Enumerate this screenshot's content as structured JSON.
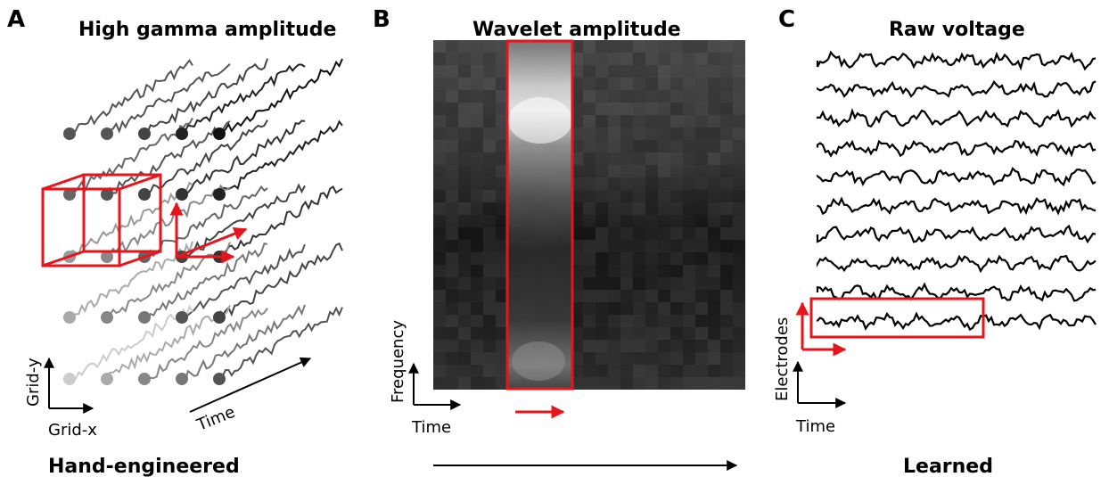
{
  "panel_a": {
    "letter": "A",
    "title": "High gamma amplitude",
    "x_axis_label": "Grid-x",
    "y_axis_label": "Grid-y",
    "time_label": "Time"
  },
  "panel_b": {
    "letter": "B",
    "title": "Wavelet amplitude",
    "x_axis_label": "Time",
    "y_axis_label": "Frequency"
  },
  "panel_c": {
    "letter": "C",
    "title": "Raw voltage",
    "x_axis_label": "Time",
    "y_axis_label": "Electrodes"
  },
  "footer": {
    "left_label": "Hand-engineered",
    "right_label": "Learned"
  },
  "colors": {
    "highlight": "#e8141b",
    "ink": "#000000"
  }
}
